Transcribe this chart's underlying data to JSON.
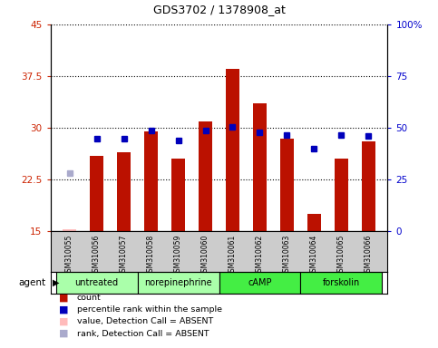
{
  "title": "GDS3702 / 1378908_at",
  "samples": [
    "GSM310055",
    "GSM310056",
    "GSM310057",
    "GSM310058",
    "GSM310059",
    "GSM310060",
    "GSM310061",
    "GSM310062",
    "GSM310063",
    "GSM310064",
    "GSM310065",
    "GSM310066"
  ],
  "bar_values": [
    15.3,
    26.0,
    26.5,
    29.5,
    25.5,
    31.0,
    38.5,
    33.5,
    28.5,
    17.5,
    25.5,
    28.0
  ],
  "bar_absent": [
    true,
    false,
    false,
    false,
    false,
    false,
    false,
    false,
    false,
    false,
    false,
    false
  ],
  "dot_values": [
    23.5,
    28.5,
    28.5,
    29.6,
    28.2,
    29.6,
    30.1,
    29.3,
    29.0,
    27.0,
    29.0,
    28.8
  ],
  "dot_absent": [
    true,
    false,
    false,
    false,
    false,
    false,
    false,
    false,
    false,
    false,
    false,
    false
  ],
  "ylim_left": [
    15,
    45
  ],
  "ylim_right": [
    0,
    100
  ],
  "yticks_left": [
    15,
    22.5,
    30,
    37.5,
    45
  ],
  "yticks_right": [
    0,
    25,
    50,
    75,
    100
  ],
  "ytick_labels_left": [
    "15",
    "22.5",
    "30",
    "37.5",
    "45"
  ],
  "ytick_labels_right": [
    "0",
    "25",
    "50",
    "75",
    "100%"
  ],
  "groups": [
    {
      "label": "untreated",
      "indices": [
        0,
        1,
        2
      ],
      "color": "#aaffaa"
    },
    {
      "label": "norepinephrine",
      "indices": [
        3,
        4,
        5
      ],
      "color": "#aaffaa"
    },
    {
      "label": "cAMP",
      "indices": [
        6,
        7,
        8
      ],
      "color": "#44ee44"
    },
    {
      "label": "forskolin",
      "indices": [
        9,
        10,
        11
      ],
      "color": "#44ee44"
    }
  ],
  "bar_color_normal": "#bb1100",
  "bar_color_absent": "#ffbbbb",
  "dot_color_normal": "#0000bb",
  "dot_color_absent": "#aaaacc",
  "dot_size": 5,
  "bar_width": 0.5,
  "bg_color_sample": "#cccccc",
  "legend_colors": [
    "#bb1100",
    "#0000bb",
    "#ffbbbb",
    "#aaaacc"
  ],
  "legend_texts": [
    "count",
    "percentile rank within the sample",
    "value, Detection Call = ABSENT",
    "rank, Detection Call = ABSENT"
  ],
  "agent_label": "agent",
  "figsize": [
    4.83,
    3.84
  ],
  "dpi": 100
}
